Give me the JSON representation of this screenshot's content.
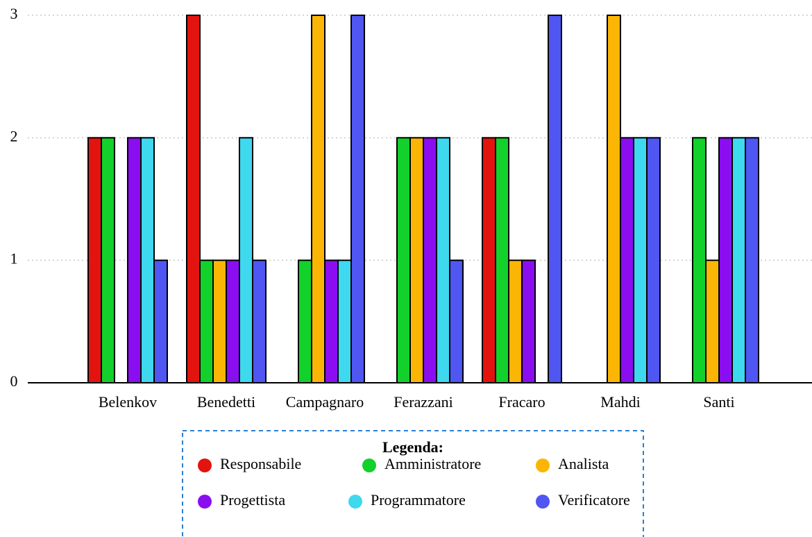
{
  "chart_data": {
    "type": "bar",
    "categories": [
      "Belenkov",
      "Benedetti",
      "Campagnaro",
      "Ferazzani",
      "Fracaro",
      "Mahdi",
      "Santi"
    ],
    "series": [
      {
        "name": "Responsabile",
        "color": "#e3140f",
        "values": [
          2,
          3,
          0,
          0,
          2,
          0,
          0
        ]
      },
      {
        "name": "Amministratore",
        "color": "#12d12b",
        "values": [
          2,
          1,
          1,
          2,
          2,
          0,
          2
        ]
      },
      {
        "name": "Analista",
        "color": "#fbb605",
        "values": [
          0,
          1,
          3,
          2,
          1,
          3,
          1
        ]
      },
      {
        "name": "Progettista",
        "color": "#8a0ef0",
        "values": [
          2,
          1,
          1,
          2,
          1,
          2,
          2
        ]
      },
      {
        "name": "Programmatore",
        "color": "#3ed8ef",
        "values": [
          2,
          2,
          1,
          2,
          0,
          2,
          2
        ]
      },
      {
        "name": "Verificatore",
        "color": "#4f56f2",
        "values": [
          1,
          1,
          3,
          1,
          3,
          2,
          2
        ]
      }
    ],
    "ylim": [
      0,
      3
    ],
    "yticks": [
      0,
      1,
      2,
      3
    ],
    "grid": true,
    "legend_title": "Legenda:"
  }
}
